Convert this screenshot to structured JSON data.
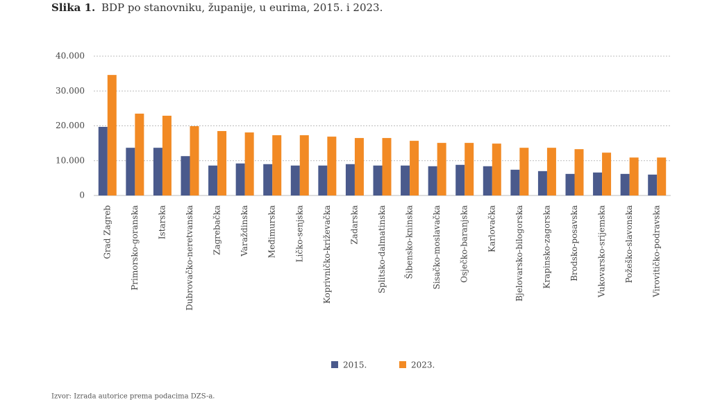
{
  "chart_data": {
    "type": "bar",
    "figure_label": "Slika 1.",
    "title": "BDP po stanovniku, županije, u eurima, 2015. i 2023.",
    "source": "Izvor: Izrada autorice prema podacima DZS-a.",
    "categories": [
      "Grad Zagreb",
      "Primorsko-goranska",
      "Istarska",
      "Dubrovačko-neretvanska",
      "Zagrebačka",
      "Varaždinska",
      "Međimurska",
      "Ličko-senjska",
      "Koprivničko-križevačka",
      "Zadarska",
      "Splitsko-dalmatinska",
      "Šibensko-kninska",
      "Sisačko-moslavačka",
      "Osječko-baranjska",
      "Karlovačka",
      "Bjelovarsko-bilogorska",
      "Krapinsko-zagorska",
      "Brodsko-posavska",
      "Vukovarsko-srijemska",
      "Požeško-slavonska",
      "Virovitičko-podravska"
    ],
    "series": [
      {
        "name": "2015.",
        "color": "#4a5a8c",
        "values": [
          19700,
          13700,
          13700,
          11300,
          8600,
          9200,
          9000,
          8600,
          8600,
          9000,
          8600,
          8600,
          8400,
          8800,
          8400,
          7400,
          7000,
          6200,
          6600,
          6200,
          6000
        ]
      },
      {
        "name": "2023.",
        "color": "#f28a24",
        "values": [
          34600,
          23500,
          22900,
          19900,
          18500,
          18100,
          17300,
          17300,
          16900,
          16500,
          16500,
          15700,
          15100,
          15100,
          14900,
          13700,
          13700,
          13300,
          12300,
          10900,
          10900
        ]
      }
    ],
    "ylim": [
      0,
      40000
    ],
    "yticks": [
      0,
      {
        "value": 10000,
        "label": "10.000"
      },
      {
        "value": 20000,
        "label": "20.000"
      },
      {
        "value": 30000,
        "label": "30.000"
      },
      {
        "value": 40000,
        "label": "40.000"
      }
    ],
    "grid": true
  }
}
